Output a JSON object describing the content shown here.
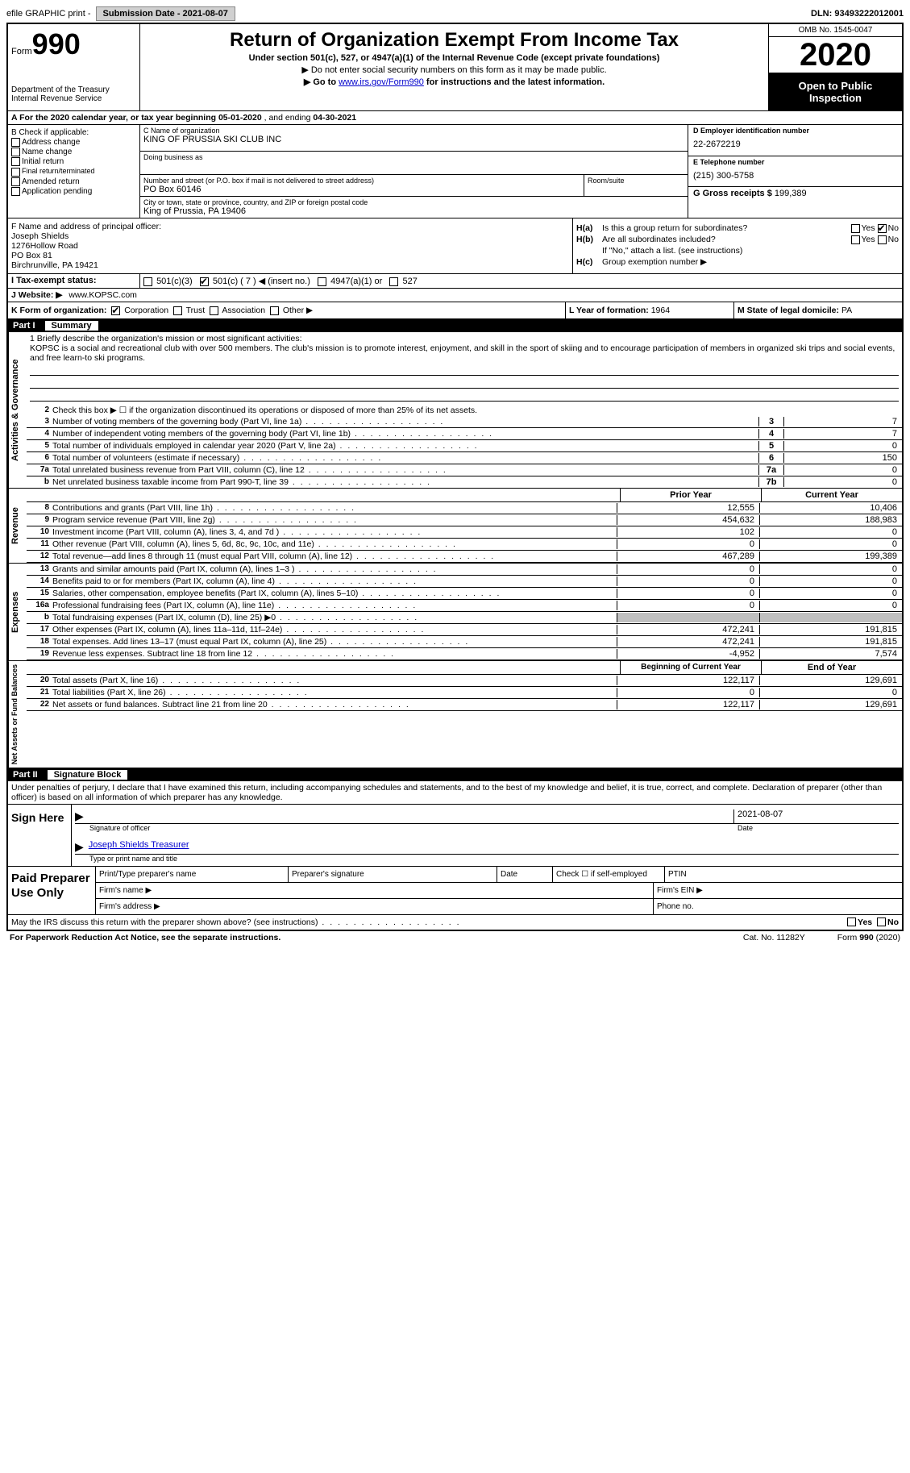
{
  "top": {
    "efile": "efile GRAPHIC print - ",
    "submission": "Submission Date - 2021-08-07",
    "dln": "DLN: 93493222012001"
  },
  "header": {
    "form_prefix": "Form",
    "form_num": "990",
    "dept": "Department of the Treasury\nInternal Revenue Service",
    "title": "Return of Organization Exempt From Income Tax",
    "sub": "Under section 501(c), 527, or 4947(a)(1) of the Internal Revenue Code (except private foundations)",
    "note1": "▶ Do not enter social security numbers on this form as it may be made public.",
    "note2_pre": "▶ Go to ",
    "note2_link": "www.irs.gov/Form990",
    "note2_post": " for instructions and the latest information.",
    "omb": "OMB No. 1545-0047",
    "year": "2020",
    "inspect": "Open to Public Inspection"
  },
  "row_a": {
    "text_pre": "A  For the 2020 calendar year, or tax year beginning ",
    "begin": "05-01-2020",
    "mid": "  , and ending ",
    "end": "04-30-2021"
  },
  "b": {
    "label": "B Check if applicable:",
    "items": [
      "Address change",
      "Name change",
      "Initial return",
      "Final return/terminated",
      "Amended return",
      "Application pending"
    ]
  },
  "c": {
    "lbl": "C Name of organization",
    "name": "KING OF PRUSSIA SKI CLUB INC",
    "dba_lbl": "Doing business as",
    "dba": "",
    "street_lbl": "Number and street (or P.O. box if mail is not delivered to street address)",
    "street": "PO Box 60146",
    "suite_lbl": "Room/suite",
    "city_lbl": "City or town, state or province, country, and ZIP or foreign postal code",
    "city": "King of Prussia, PA   19406"
  },
  "d": {
    "lbl": "D Employer identification number",
    "val": "22-2672219"
  },
  "e": {
    "lbl": "E Telephone number",
    "val": "(215) 300-5758"
  },
  "g": {
    "lbl": "G Gross receipts $",
    "val": "199,389"
  },
  "f": {
    "lbl": "F Name and address of principal officer:",
    "lines": [
      "Joseph Shields",
      "1276Hollow Road",
      "PO Box 81",
      "Birchrunville, PA   19421"
    ]
  },
  "h": {
    "a_lbl": "H(a)",
    "a_txt": "Is this a group return for subordinates?",
    "a_yes": "Yes",
    "a_no": "No",
    "b_lbl": "H(b)",
    "b_txt": "Are all subordinates included?",
    "b_note": "If \"No,\" attach a list. (see instructions)",
    "c_lbl": "H(c)",
    "c_txt": "Group exemption number ▶"
  },
  "i": {
    "lbl": "I   Tax-exempt status:",
    "opts": [
      "501(c)(3)",
      "501(c) ( 7 ) ◀ (insert no.)",
      "4947(a)(1) or",
      "527"
    ]
  },
  "j": {
    "lbl": "J   Website: ▶",
    "val": "www.KOPSC.com"
  },
  "k": {
    "lbl": "K Form of organization:",
    "opts": [
      "Corporation",
      "Trust",
      "Association",
      "Other ▶"
    ]
  },
  "l": {
    "lbl": "L Year of formation:",
    "val": "1964"
  },
  "m": {
    "lbl": "M State of legal domicile:",
    "val": "PA"
  },
  "part1": {
    "num": "Part I",
    "title": "Summary"
  },
  "mission": {
    "lbl": "1   Briefly describe the organization's mission or most significant activities:",
    "txt": "KOPSC is a social and recreational club with over 500 members. The club's mission is to promote interest, enjoyment, and skill in the sport of skiing and to encourage participation of members in organized ski trips and social events, and free learn-to ski programs."
  },
  "line2": "Check this box ▶ ☐  if the organization discontinued its operations or disposed of more than 25% of its net assets.",
  "gov_lines": [
    {
      "n": "3",
      "t": "Number of voting members of the governing body (Part VI, line 1a)",
      "b": "3",
      "v": "7"
    },
    {
      "n": "4",
      "t": "Number of independent voting members of the governing body (Part VI, line 1b)",
      "b": "4",
      "v": "7"
    },
    {
      "n": "5",
      "t": "Total number of individuals employed in calendar year 2020 (Part V, line 2a)",
      "b": "5",
      "v": "0"
    },
    {
      "n": "6",
      "t": "Total number of volunteers (estimate if necessary)",
      "b": "6",
      "v": "150"
    },
    {
      "n": "7a",
      "t": "Total unrelated business revenue from Part VIII, column (C), line 12",
      "b": "7a",
      "v": "0"
    },
    {
      "n": "b",
      "t": "Net unrelated business taxable income from Part 990-T, line 39",
      "b": "7b",
      "v": "0"
    }
  ],
  "col_hdrs": {
    "py": "Prior Year",
    "cy": "Current Year"
  },
  "rev_lines": [
    {
      "n": "8",
      "t": "Contributions and grants (Part VIII, line 1h)",
      "v1": "12,555",
      "v2": "10,406"
    },
    {
      "n": "9",
      "t": "Program service revenue (Part VIII, line 2g)",
      "v1": "454,632",
      "v2": "188,983"
    },
    {
      "n": "10",
      "t": "Investment income (Part VIII, column (A), lines 3, 4, and 7d )",
      "v1": "102",
      "v2": "0"
    },
    {
      "n": "11",
      "t": "Other revenue (Part VIII, column (A), lines 5, 6d, 8c, 9c, 10c, and 11e)",
      "v1": "0",
      "v2": "0"
    },
    {
      "n": "12",
      "t": "Total revenue—add lines 8 through 11 (must equal Part VIII, column (A), line 12)",
      "v1": "467,289",
      "v2": "199,389"
    }
  ],
  "exp_lines": [
    {
      "n": "13",
      "t": "Grants and similar amounts paid (Part IX, column (A), lines 1–3 )",
      "v1": "0",
      "v2": "0"
    },
    {
      "n": "14",
      "t": "Benefits paid to or for members (Part IX, column (A), line 4)",
      "v1": "0",
      "v2": "0"
    },
    {
      "n": "15",
      "t": "Salaries, other compensation, employee benefits (Part IX, column (A), lines 5–10)",
      "v1": "0",
      "v2": "0"
    },
    {
      "n": "16a",
      "t": "Professional fundraising fees (Part IX, column (A), line 11e)",
      "v1": "0",
      "v2": "0"
    },
    {
      "n": "b",
      "t": "Total fundraising expenses (Part IX, column (D), line 25) ▶0",
      "v1": "gray",
      "v2": "gray"
    },
    {
      "n": "17",
      "t": "Other expenses (Part IX, column (A), lines 11a–11d, 11f–24e)",
      "v1": "472,241",
      "v2": "191,815"
    },
    {
      "n": "18",
      "t": "Total expenses. Add lines 13–17 (must equal Part IX, column (A), line 25)",
      "v1": "472,241",
      "v2": "191,815"
    },
    {
      "n": "19",
      "t": "Revenue less expenses. Subtract line 18 from line 12",
      "v1": "-4,952",
      "v2": "7,574"
    }
  ],
  "bal_hdrs": {
    "by": "Beginning of Current Year",
    "ey": "End of Year"
  },
  "bal_lines": [
    {
      "n": "20",
      "t": "Total assets (Part X, line 16)",
      "v1": "122,117",
      "v2": "129,691"
    },
    {
      "n": "21",
      "t": "Total liabilities (Part X, line 26)",
      "v1": "0",
      "v2": "0"
    },
    {
      "n": "22",
      "t": "Net assets or fund balances. Subtract line 21 from line 20",
      "v1": "122,117",
      "v2": "129,691"
    }
  ],
  "part2": {
    "num": "Part II",
    "title": "Signature Block"
  },
  "sig": {
    "intro": "Under penalties of perjury, I declare that I have examined this return, including accompanying schedules and statements, and to the best of my knowledge and belief, it is true, correct, and complete. Declaration of preparer (other than officer) is based on all information of which preparer has any knowledge.",
    "here": "Sign Here",
    "sig_of": "Signature of officer",
    "date_lbl": "Date",
    "date": "2021-08-07",
    "name": "Joseph Shields  Treasurer",
    "name_lbl": "Type or print name and title"
  },
  "paid": {
    "title": "Paid Preparer Use Only",
    "h1": "Print/Type preparer's name",
    "h2": "Preparer's signature",
    "h3": "Date",
    "h4": "Check ☐ if self-employed",
    "h5": "PTIN",
    "r2a": "Firm's name   ▶",
    "r2b": "Firm's EIN ▶",
    "r3a": "Firm's address ▶",
    "r3b": "Phone no."
  },
  "discuss": "May the IRS discuss this return with the preparer shown above? (see instructions)",
  "discuss_yes": "Yes",
  "discuss_no": "No",
  "footer": {
    "l": "For Paperwork Reduction Act Notice, see the separate instructions.",
    "c": "Cat. No. 11282Y",
    "r": "Form 990 (2020)"
  },
  "vlabels": {
    "gov": "Activities & Governance",
    "rev": "Revenue",
    "exp": "Expenses",
    "bal": "Net Assets or Fund Balances"
  }
}
